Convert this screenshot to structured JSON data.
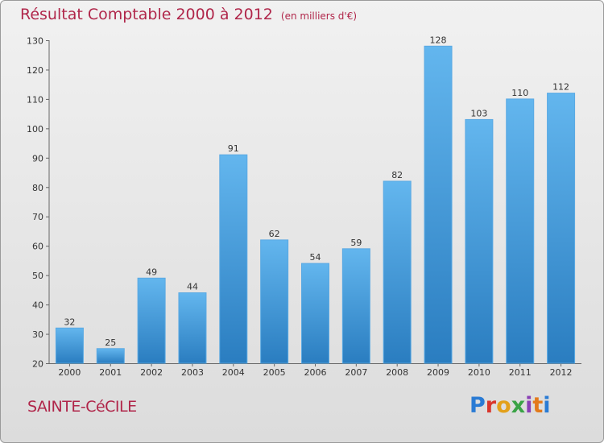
{
  "header": {
    "title": "Résultat Comptable 2000 à 2012",
    "subtitle": "(en milliers d'€)"
  },
  "footer": {
    "commune": "SAINTE-CéCILE",
    "logo_text": "Proxiti",
    "logo_colors": [
      "#2a7bd4",
      "#d9362c",
      "#e3a11b",
      "#3aa346",
      "#8a3fb5",
      "#e37a1b",
      "#2a7bd4"
    ]
  },
  "colors": {
    "bar": "#3f9ee0",
    "bar_light": "#63b6ee",
    "bar_dark": "#2a7dc0",
    "axis": "#666666",
    "title": "#b0264a"
  },
  "chart_data": {
    "type": "bar",
    "title": "Résultat Comptable 2000 à 2012",
    "subtitle": "(en milliers d'€)",
    "categories": [
      "2000",
      "2001",
      "2002",
      "2003",
      "2004",
      "2005",
      "2006",
      "2007",
      "2008",
      "2009",
      "2010",
      "2011",
      "2012"
    ],
    "values": [
      32,
      25,
      49,
      44,
      91,
      62,
      54,
      59,
      82,
      128,
      103,
      110,
      112
    ],
    "data_labels": [
      "32",
      "25",
      "49",
      "44",
      "91",
      "62",
      "54",
      "59",
      "82",
      "128",
      "103",
      "110",
      "112"
    ],
    "ylim": [
      20,
      130
    ],
    "yticks": [
      20,
      30,
      40,
      50,
      60,
      70,
      80,
      90,
      100,
      110,
      120,
      130
    ],
    "ytick_labels": [
      "20",
      "30",
      "40",
      "50",
      "60",
      "70",
      "80",
      "90",
      "100",
      "110",
      "120",
      "130"
    ],
    "grid": false,
    "legend": "none"
  }
}
